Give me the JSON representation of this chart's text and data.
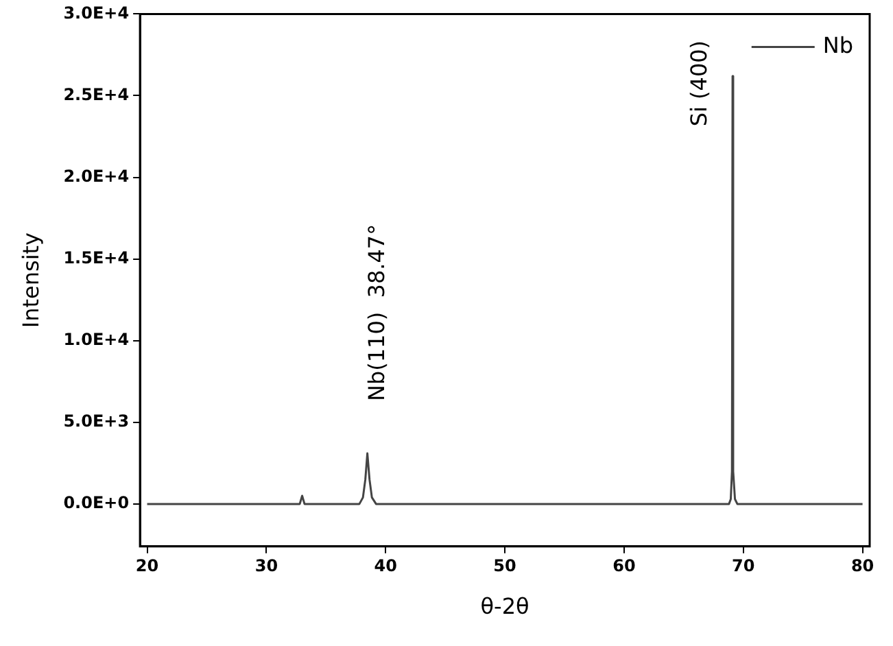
{
  "chart_data": {
    "type": "line",
    "xlabel": "θ-2θ",
    "ylabel": "Intensity",
    "xlim": [
      19.4,
      80.6
    ],
    "xticks": [
      20,
      30,
      40,
      50,
      60,
      70,
      80
    ],
    "ylim": [
      -2600,
      30000
    ],
    "yticks": [
      {
        "value": 0,
        "label": "0.0E+0"
      },
      {
        "value": 5000,
        "label": "5.0E+3"
      },
      {
        "value": 10000,
        "label": "1.0E+4"
      },
      {
        "value": 15000,
        "label": "1.5E+4"
      },
      {
        "value": 20000,
        "label": "2.0E+4"
      },
      {
        "value": 25000,
        "label": "2.5E+4"
      },
      {
        "value": 30000,
        "label": "3.0E+4"
      }
    ],
    "x": [
      20,
      32.8,
      33.0,
      33.2,
      37.8,
      38.1,
      38.3,
      38.47,
      38.65,
      38.85,
      39.2,
      68.8,
      68.95,
      69.05,
      69.1,
      69.15,
      69.3,
      69.5,
      80
    ],
    "series": [
      {
        "name": "Nb",
        "color": "#444444",
        "values": [
          0,
          0,
          500,
          0,
          0,
          400,
          1500,
          3100,
          1500,
          400,
          0,
          0,
          300,
          2000,
          26200,
          2000,
          300,
          0,
          0
        ]
      }
    ],
    "annotations": [
      {
        "text": "Nb(110)  38.47°",
        "x": 38.47,
        "y": 3100
      },
      {
        "text": "Si (400)",
        "x": 69.1,
        "y": 26200
      }
    ],
    "legend": "top right",
    "marker": "none",
    "line_style": "solid",
    "grid": false
  }
}
